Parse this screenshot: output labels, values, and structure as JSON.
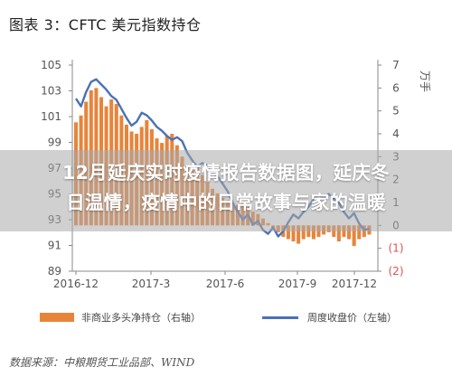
{
  "title": "图表 3：CFTC 美元指数持仓",
  "overlay_text": [
    "12月延庆实时疫情报告数据图，延庆冬",
    "日温情，疫情中的日常故事与家的温暖"
  ],
  "legend": {
    "bar_label": "非商业多头净持仓（右轴）",
    "line_label": "周度收盘价（左轴）"
  },
  "source": "数据来源：中粮期货工业品部、WIND",
  "colors": {
    "bar": "#E8843A",
    "line": "#4A71B7",
    "negative_tick": "#D9534F",
    "axis_text": "#555555"
  },
  "chart_data": {
    "type": "bar+line",
    "x_tick_labels": [
      "2016-12",
      "2017-3",
      "2017-6",
      "2017-9",
      "2017-12"
    ],
    "left_axis": {
      "label": "",
      "ticks": [
        "105",
        "103",
        "101",
        "99",
        "97",
        "95",
        "93",
        "91",
        "89"
      ],
      "ylim": [
        89,
        105
      ]
    },
    "right_axis": {
      "label": "万手",
      "ticks": [
        "7",
        "6",
        "5",
        "4",
        "3",
        "2",
        "1",
        "0",
        "(1)",
        "(2)"
      ],
      "ylim": [
        -2,
        7
      ]
    },
    "series": [
      {
        "name": "非商业多头净持仓（右轴）",
        "axis": "right",
        "type": "bar",
        "values": [
          4.5,
          4.8,
          5.4,
          5.9,
          6.0,
          5.6,
          5.2,
          5.5,
          5.3,
          4.8,
          4.4,
          4.1,
          4.0,
          4.3,
          4.6,
          4.2,
          3.8,
          3.6,
          3.9,
          4.0,
          3.5,
          3.0,
          2.6,
          2.4,
          2.6,
          2.2,
          1.9,
          1.6,
          1.4,
          1.2,
          1.1,
          1.0,
          0.9,
          1.0,
          0.8,
          0.6,
          0.5,
          0.3,
          0.1,
          -0.1,
          -0.3,
          -0.5,
          -0.6,
          -0.7,
          -0.8,
          -0.6,
          -0.5,
          -0.6,
          -0.5,
          -0.4,
          -0.3,
          -0.5,
          -0.7,
          -0.5,
          -0.6,
          -0.9,
          -0.6,
          -0.5,
          -0.4
        ]
      },
      {
        "name": "周度收盘价（左轴）",
        "axis": "left",
        "type": "line",
        "values": [
          102.4,
          101.8,
          102.9,
          103.7,
          103.9,
          103.5,
          103.1,
          102.6,
          102.3,
          101.6,
          100.9,
          100.3,
          100.6,
          101.3,
          101.1,
          100.7,
          100.2,
          99.9,
          99.5,
          99.2,
          99.4,
          99.1,
          98.2,
          97.6,
          97.1,
          97.4,
          97.2,
          96.6,
          96.4,
          95.8,
          95.2,
          94.3,
          93.6,
          93.0,
          93.4,
          92.6,
          92.9,
          92.2,
          91.9,
          92.4,
          91.7,
          92.1,
          92.8,
          93.4,
          93.1,
          93.6,
          94.0,
          94.6,
          94.9,
          94.7,
          95.0,
          94.6,
          94.3,
          93.6,
          93.1,
          93.5,
          92.7,
          92.2,
          92.3
        ]
      }
    ],
    "grid": false,
    "legend_position": "bottom"
  }
}
